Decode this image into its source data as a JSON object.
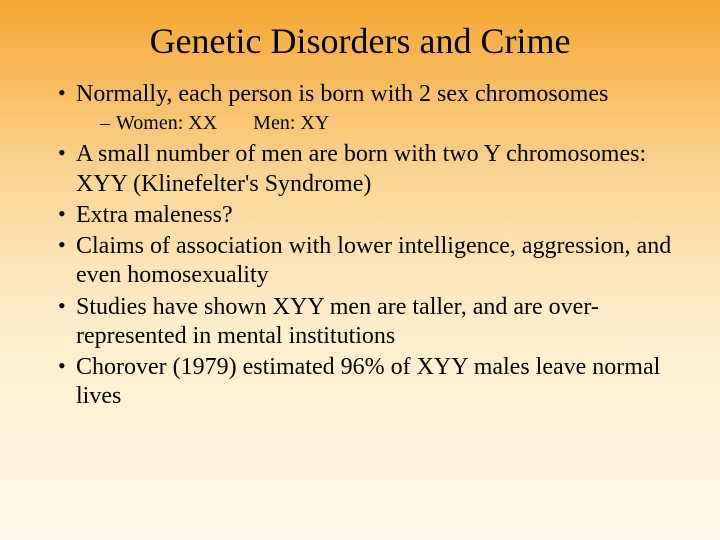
{
  "slide": {
    "title": "Genetic Disorders and Crime",
    "background_gradient_stops": [
      "#f5a733",
      "#fcd89a",
      "#ffeecb",
      "#fff8e8"
    ],
    "title_fontsize": 36,
    "body_fontsize": 24,
    "sub_fontsize": 20,
    "font_family": "Times New Roman",
    "text_color": "#000000",
    "bullets": [
      {
        "text": "Normally, each person is born with 2 sex chromosomes",
        "sub": [
          {
            "text_a": "Women: XX",
            "text_b": "Men: XY"
          }
        ]
      },
      {
        "text": "A small number of men are born with two Y chromosomes: XYY (Klinefelter's Syndrome)"
      },
      {
        "text": "Extra maleness?"
      },
      {
        "text": "Claims of association with lower intelligence, aggression, and even homosexuality"
      },
      {
        "text": "Studies have shown XYY men are taller, and are over-represented in mental institutions"
      },
      {
        "text": "Chorover (1979) estimated 96% of XYY males leave normal lives"
      }
    ]
  }
}
